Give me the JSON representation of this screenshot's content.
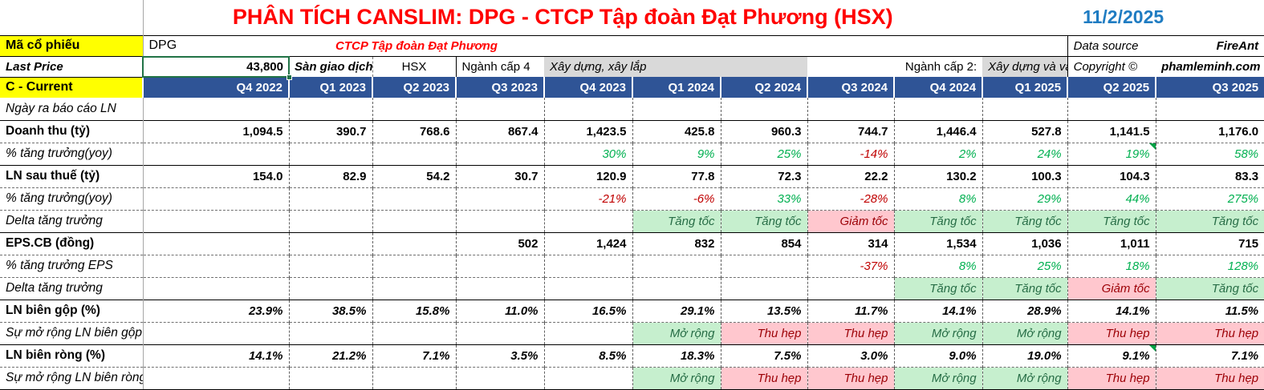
{
  "meta": {
    "title": "PHÂN TÍCH CANSLIM: DPG - CTCP Tập đoàn Đạt Phương (HSX)",
    "date": "11/2/2025"
  },
  "info": {
    "ticker_label": "Mã cổ phiếu",
    "ticker": "DPG",
    "company": "CTCP Tập đoàn Đạt Phương",
    "data_source_label": "Data source",
    "data_source": "FireAnt",
    "last_price_label": "Last Price",
    "last_price": "43,800",
    "exchange_label": "Sàn giao dịch",
    "exchange": "HSX",
    "industry4_label": "Ngành cấp 4",
    "industry4": "Xây dựng, xây lắp",
    "industry2_label": "Ngành cấp 2:",
    "industry2": "Xây dựng và vậ",
    "copyright_label": "Copyright ©",
    "copyright": "phamleminh.com",
    "current_label": "C - Current"
  },
  "colors": {
    "title_red": "#FF0000",
    "date_blue": "#1F7CC2",
    "header_blue": "#2F5496",
    "highlight_yellow": "#FFFF00",
    "positive_green": "#00B050",
    "negative_red": "#C00000",
    "good_bg": "#C6EFCE",
    "good_text": "#276D46",
    "bad_bg": "#FFC7CE",
    "bad_text": "#9C0006",
    "industry_gray": "#D9D9D9",
    "selection_green": "#217346"
  },
  "columns": [
    "Q4 2022",
    "Q1 2023",
    "Q2 2023",
    "Q3 2023",
    "Q4 2023",
    "Q1 2024",
    "Q2 2024",
    "Q3 2024",
    "Q4 2024",
    "Q1 2025",
    "Q2 2025",
    "Q3 2025"
  ],
  "rows": [
    {
      "label": "Ngày ra báo cáo LN",
      "lstyle": "italic",
      "top": "none",
      "cells": [
        "",
        "",
        "",
        "",
        "",
        "",
        "",
        "",
        "",
        "",
        "",
        ""
      ]
    },
    {
      "label": "Doanh thu (tỷ)",
      "lstyle": "bold",
      "top": "solid",
      "cells": [
        {
          "v": "1,094.5",
          "s": "num"
        },
        {
          "v": "390.7",
          "s": "num"
        },
        {
          "v": "768.6",
          "s": "num"
        },
        {
          "v": "867.4",
          "s": "num"
        },
        {
          "v": "1,423.5",
          "s": "num"
        },
        {
          "v": "425.8",
          "s": "num"
        },
        {
          "v": "960.3",
          "s": "num"
        },
        {
          "v": "744.7",
          "s": "num"
        },
        {
          "v": "1,446.4",
          "s": "num"
        },
        {
          "v": "527.8",
          "s": "num"
        },
        {
          "v": "1,141.5",
          "s": "num"
        },
        {
          "v": "1,176.0",
          "s": "num"
        }
      ]
    },
    {
      "label": "% tăng trưởng(yoy)",
      "lstyle": "italic",
      "top": "dash",
      "cells": [
        "",
        "",
        "",
        "",
        {
          "v": "30%",
          "s": "pos"
        },
        {
          "v": "9%",
          "s": "pos"
        },
        {
          "v": "25%",
          "s": "pos"
        },
        {
          "v": "-14%",
          "s": "neg"
        },
        {
          "v": "2%",
          "s": "pos"
        },
        {
          "v": "24%",
          "s": "pos"
        },
        {
          "v": "19%",
          "s": "pos",
          "flag": true
        },
        {
          "v": "58%",
          "s": "pos"
        }
      ]
    },
    {
      "label": "LN sau thuế (tỷ)",
      "lstyle": "bold",
      "top": "solid",
      "cells": [
        {
          "v": "154.0",
          "s": "num"
        },
        {
          "v": "82.9",
          "s": "num"
        },
        {
          "v": "54.2",
          "s": "num"
        },
        {
          "v": "30.7",
          "s": "num"
        },
        {
          "v": "120.9",
          "s": "num"
        },
        {
          "v": "77.8",
          "s": "num"
        },
        {
          "v": "72.3",
          "s": "num"
        },
        {
          "v": "22.2",
          "s": "num"
        },
        {
          "v": "130.2",
          "s": "num"
        },
        {
          "v": "100.3",
          "s": "num"
        },
        {
          "v": "104.3",
          "s": "num"
        },
        {
          "v": "83.3",
          "s": "num"
        }
      ]
    },
    {
      "label": "% tăng trưởng(yoy)",
      "lstyle": "italic",
      "top": "dash",
      "cells": [
        "",
        "",
        "",
        "",
        {
          "v": "-21%",
          "s": "neg"
        },
        {
          "v": "-6%",
          "s": "neg"
        },
        {
          "v": "33%",
          "s": "pos"
        },
        {
          "v": "-28%",
          "s": "neg"
        },
        {
          "v": "8%",
          "s": "pos"
        },
        {
          "v": "29%",
          "s": "pos"
        },
        {
          "v": "44%",
          "s": "pos"
        },
        {
          "v": "275%",
          "s": "pos"
        }
      ]
    },
    {
      "label": "Delta tăng trưởng",
      "lstyle": "italic",
      "top": "dash",
      "cells": [
        "",
        "",
        "",
        "",
        "",
        {
          "v": "Tăng tốc",
          "s": "good"
        },
        {
          "v": "Tăng tốc",
          "s": "good"
        },
        {
          "v": "Giảm tốc",
          "s": "bad"
        },
        {
          "v": "Tăng tốc",
          "s": "good"
        },
        {
          "v": "Tăng tốc",
          "s": "good"
        },
        {
          "v": "Tăng tốc",
          "s": "good"
        },
        {
          "v": "Tăng tốc",
          "s": "good"
        }
      ]
    },
    {
      "label": "EPS.CB (đồng)",
      "lstyle": "bold",
      "top": "solid",
      "cells": [
        "",
        "",
        "",
        {
          "v": "502",
          "s": "num"
        },
        {
          "v": "1,424",
          "s": "num"
        },
        {
          "v": "832",
          "s": "num"
        },
        {
          "v": "854",
          "s": "num"
        },
        {
          "v": "314",
          "s": "num"
        },
        {
          "v": "1,534",
          "s": "num"
        },
        {
          "v": "1,036",
          "s": "num"
        },
        {
          "v": "1,011",
          "s": "num"
        },
        {
          "v": "715",
          "s": "num"
        }
      ]
    },
    {
      "label": "% tăng trưởng EPS",
      "lstyle": "italic",
      "top": "dash",
      "cells": [
        "",
        "",
        "",
        "",
        "",
        "",
        "",
        {
          "v": "-37%",
          "s": "neg"
        },
        {
          "v": "8%",
          "s": "pos"
        },
        {
          "v": "25%",
          "s": "pos"
        },
        {
          "v": "18%",
          "s": "pos"
        },
        {
          "v": "128%",
          "s": "pos"
        }
      ]
    },
    {
      "label": "Delta tăng trưởng",
      "lstyle": "italic",
      "top": "dash",
      "cells": [
        "",
        "",
        "",
        "",
        "",
        "",
        "",
        "",
        {
          "v": "Tăng tốc",
          "s": "good"
        },
        {
          "v": "Tăng tốc",
          "s": "good"
        },
        {
          "v": "Giảm tốc",
          "s": "bad"
        },
        {
          "v": "Tăng tốc",
          "s": "good"
        }
      ]
    },
    {
      "label": "LN biên gộp (%)",
      "lstyle": "bold",
      "top": "solid",
      "cells": [
        {
          "v": "23.9%",
          "s": "pct"
        },
        {
          "v": "38.5%",
          "s": "pct"
        },
        {
          "v": "15.8%",
          "s": "pct"
        },
        {
          "v": "11.0%",
          "s": "pct"
        },
        {
          "v": "16.5%",
          "s": "pct"
        },
        {
          "v": "29.1%",
          "s": "pct"
        },
        {
          "v": "13.5%",
          "s": "pct"
        },
        {
          "v": "11.7%",
          "s": "pct"
        },
        {
          "v": "14.1%",
          "s": "pct"
        },
        {
          "v": "28.9%",
          "s": "pct"
        },
        {
          "v": "14.1%",
          "s": "pct"
        },
        {
          "v": "11.5%",
          "s": "pct"
        }
      ]
    },
    {
      "label": "Sự mở rộng LN biên gộp",
      "lstyle": "italic",
      "top": "dash",
      "cells": [
        "",
        "",
        "",
        "",
        "",
        {
          "v": "Mở rộng",
          "s": "good"
        },
        {
          "v": "Thu hẹp",
          "s": "bad"
        },
        {
          "v": "Thu hẹp",
          "s": "bad"
        },
        {
          "v": "Mở rộng",
          "s": "good"
        },
        {
          "v": "Mở rộng",
          "s": "good"
        },
        {
          "v": "Thu hẹp",
          "s": "bad"
        },
        {
          "v": "Thu hẹp",
          "s": "bad"
        }
      ]
    },
    {
      "label": "LN biên ròng (%)",
      "lstyle": "bold",
      "top": "solid",
      "cells": [
        {
          "v": "14.1%",
          "s": "pct"
        },
        {
          "v": "21.2%",
          "s": "pct"
        },
        {
          "v": "7.1%",
          "s": "pct"
        },
        {
          "v": "3.5%",
          "s": "pct"
        },
        {
          "v": "8.5%",
          "s": "pct"
        },
        {
          "v": "18.3%",
          "s": "pct"
        },
        {
          "v": "7.5%",
          "s": "pct"
        },
        {
          "v": "3.0%",
          "s": "pct"
        },
        {
          "v": "9.0%",
          "s": "pct"
        },
        {
          "v": "19.0%",
          "s": "pct"
        },
        {
          "v": "9.1%",
          "s": "pct",
          "flag": true
        },
        {
          "v": "7.1%",
          "s": "pct"
        }
      ]
    },
    {
      "label": "Sự mở rộng LN biên ròng",
      "lstyle": "italic",
      "top": "dash",
      "cells": [
        "",
        "",
        "",
        "",
        "",
        {
          "v": "Mở rộng",
          "s": "good"
        },
        {
          "v": "Thu hẹp",
          "s": "bad"
        },
        {
          "v": "Thu hẹp",
          "s": "bad"
        },
        {
          "v": "Mở rộng",
          "s": "good"
        },
        {
          "v": "Mở rộng",
          "s": "good"
        },
        {
          "v": "Thu hẹp",
          "s": "bad"
        },
        {
          "v": "Thu hẹp",
          "s": "bad"
        }
      ]
    }
  ]
}
